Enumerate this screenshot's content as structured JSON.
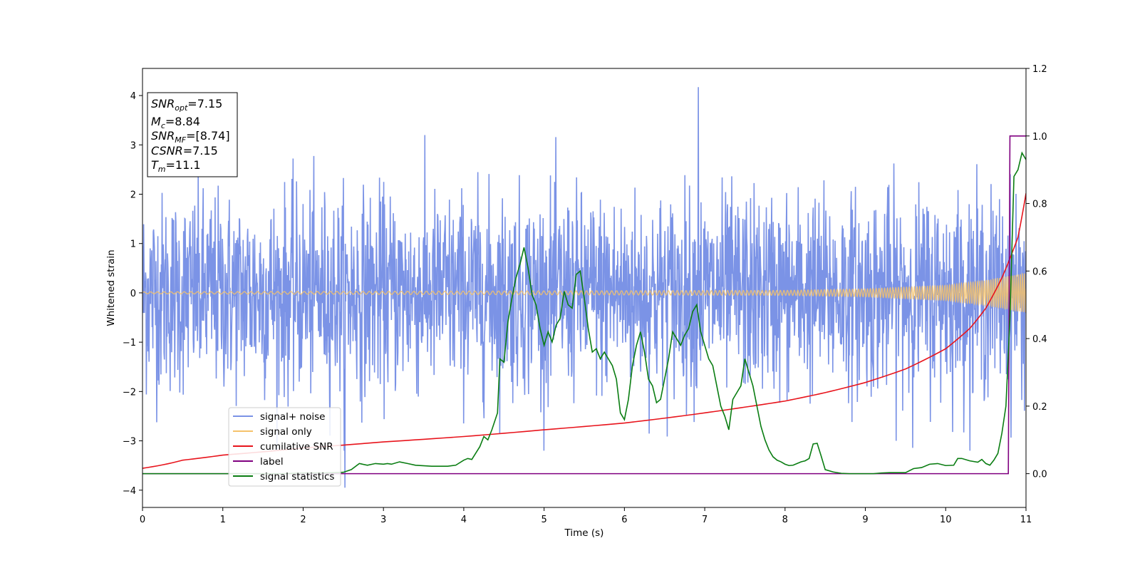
{
  "chart_data": {
    "type": "line",
    "title": "",
    "xlabel": "Time (s)",
    "ylabel": "Whitened strain",
    "y2label": "",
    "xlim": [
      0,
      11
    ],
    "ylim": [
      -4.35,
      4.55
    ],
    "y2lim": [
      -0.1,
      1.2
    ],
    "xticks": [
      0,
      1,
      2,
      3,
      4,
      5,
      6,
      7,
      8,
      9,
      10,
      11
    ],
    "yticks": [
      -4,
      -3,
      -2,
      -1,
      0,
      1,
      2,
      3,
      4
    ],
    "y2ticks": [
      "0.0",
      "0.2",
      "0.4",
      "0.6",
      "0.8",
      "1.0",
      "1.2"
    ],
    "grid": false,
    "legend_position": "lower-left",
    "info_box": {
      "lines": [
        {
          "main": "SNR",
          "sub": "opt",
          "value": "=7.15"
        },
        {
          "main": "M",
          "sub": "c",
          "value": "=8.84"
        },
        {
          "main": "SNR",
          "sub": "MF",
          "value": "=[8.74]"
        },
        {
          "main": "CSNR",
          "sub": "",
          "value": "=7.15"
        },
        {
          "main": "T",
          "sub": "m",
          "value": "=11.1"
        }
      ]
    },
    "series": [
      {
        "name": "signal+ noise",
        "axis": "left",
        "color": "#7b93e6",
        "description_values": {
          "typical_range": [
            -2.0,
            2.0
          ],
          "max_peak": 4.17,
          "max_peak_x": 6.92,
          "min_peak": -3.95,
          "min_peak_x": 2.52
        }
      },
      {
        "name": "signal only",
        "axis": "left",
        "color": "#f5c26b",
        "envelope": {
          "x": [
            0,
            8,
            9,
            10,
            10.5,
            11
          ],
          "amplitude": [
            0.02,
            0.05,
            0.08,
            0.15,
            0.25,
            0.4
          ]
        }
      },
      {
        "name": "cumilative SNR",
        "axis": "right",
        "color": "#e8141c",
        "x": [
          0,
          0.5,
          1,
          2,
          3,
          4,
          5,
          6,
          7,
          7.5,
          8,
          8.5,
          9,
          9.5,
          10,
          10.3,
          10.5,
          10.7,
          10.9,
          11.0
        ],
        "y": [
          0.016,
          0.04,
          0.055,
          0.076,
          0.094,
          0.11,
          0.13,
          0.15,
          0.18,
          0.197,
          0.215,
          0.24,
          0.27,
          0.31,
          0.37,
          0.43,
          0.49,
          0.58,
          0.7,
          0.83
        ]
      },
      {
        "name": "label",
        "axis": "right",
        "color": "#800080",
        "x": [
          0,
          10.78,
          10.8,
          11.0
        ],
        "y": [
          0,
          0,
          1,
          1
        ]
      },
      {
        "name": "signal statistics",
        "axis": "right",
        "color": "#0a7d12",
        "x": [
          0,
          0.25,
          0.5,
          0.75,
          1,
          1.25,
          1.5,
          1.75,
          2,
          2.25,
          2.5,
          2.6,
          2.7,
          2.8,
          2.9,
          3.0,
          3.05,
          3.1,
          3.2,
          3.3,
          3.4,
          3.6,
          3.8,
          3.9,
          4.0,
          4.05,
          4.1,
          4.2,
          4.25,
          4.3,
          4.35,
          4.42,
          4.45,
          4.5,
          4.55,
          4.6,
          4.65,
          4.7,
          4.75,
          4.8,
          4.85,
          4.9,
          4.95,
          5.0,
          5.05,
          5.1,
          5.15,
          5.2,
          5.25,
          5.3,
          5.35,
          5.4,
          5.45,
          5.5,
          5.55,
          5.6,
          5.65,
          5.7,
          5.75,
          5.8,
          5.85,
          5.9,
          5.95,
          6.0,
          6.05,
          6.1,
          6.15,
          6.2,
          6.25,
          6.3,
          6.35,
          6.4,
          6.45,
          6.5,
          6.55,
          6.6,
          6.65,
          6.7,
          6.75,
          6.8,
          6.85,
          6.9,
          6.95,
          7.0,
          7.05,
          7.1,
          7.15,
          7.2,
          7.25,
          7.3,
          7.35,
          7.4,
          7.45,
          7.5,
          7.55,
          7.6,
          7.65,
          7.7,
          7.75,
          7.8,
          7.85,
          7.9,
          7.95,
          8.0,
          8.05,
          8.1,
          8.15,
          8.2,
          8.25,
          8.3,
          8.35,
          8.4,
          8.45,
          8.5,
          8.6,
          8.7,
          8.8,
          9.0,
          9.1,
          9.2,
          9.3,
          9.5,
          9.6,
          9.7,
          9.8,
          9.9,
          10.0,
          10.1,
          10.15,
          10.2,
          10.3,
          10.4,
          10.45,
          10.5,
          10.55,
          10.6,
          10.65,
          10.7,
          10.75,
          10.8,
          10.85,
          10.9,
          10.95,
          11.0
        ],
        "y": [
          0.0,
          0.0,
          0.0,
          0.0,
          0.0,
          0.0,
          0.0,
          0.0,
          0.002,
          0.002,
          0.004,
          0.012,
          0.03,
          0.025,
          0.03,
          0.028,
          0.03,
          0.028,
          0.035,
          0.03,
          0.025,
          0.022,
          0.022,
          0.025,
          0.04,
          0.045,
          0.042,
          0.08,
          0.11,
          0.1,
          0.13,
          0.18,
          0.34,
          0.33,
          0.45,
          0.52,
          0.58,
          0.62,
          0.67,
          0.61,
          0.53,
          0.5,
          0.43,
          0.38,
          0.42,
          0.39,
          0.44,
          0.46,
          0.54,
          0.5,
          0.49,
          0.59,
          0.6,
          0.52,
          0.43,
          0.36,
          0.37,
          0.34,
          0.36,
          0.34,
          0.32,
          0.28,
          0.18,
          0.16,
          0.22,
          0.32,
          0.38,
          0.42,
          0.36,
          0.28,
          0.26,
          0.21,
          0.22,
          0.28,
          0.34,
          0.42,
          0.4,
          0.38,
          0.41,
          0.43,
          0.48,
          0.5,
          0.42,
          0.38,
          0.34,
          0.32,
          0.26,
          0.2,
          0.17,
          0.13,
          0.22,
          0.24,
          0.26,
          0.34,
          0.3,
          0.26,
          0.2,
          0.14,
          0.1,
          0.07,
          0.05,
          0.04,
          0.035,
          0.028,
          0.024,
          0.025,
          0.03,
          0.035,
          0.038,
          0.045,
          0.088,
          0.09,
          0.052,
          0.012,
          0.005,
          0.001,
          0.0,
          0.0,
          0.0,
          0.002,
          0.003,
          0.003,
          0.015,
          0.018,
          0.028,
          0.03,
          0.024,
          0.025,
          0.045,
          0.045,
          0.038,
          0.034,
          0.042,
          0.03,
          0.025,
          0.04,
          0.06,
          0.12,
          0.2,
          0.46,
          0.88,
          0.9,
          0.95,
          0.93
        ]
      }
    ]
  }
}
